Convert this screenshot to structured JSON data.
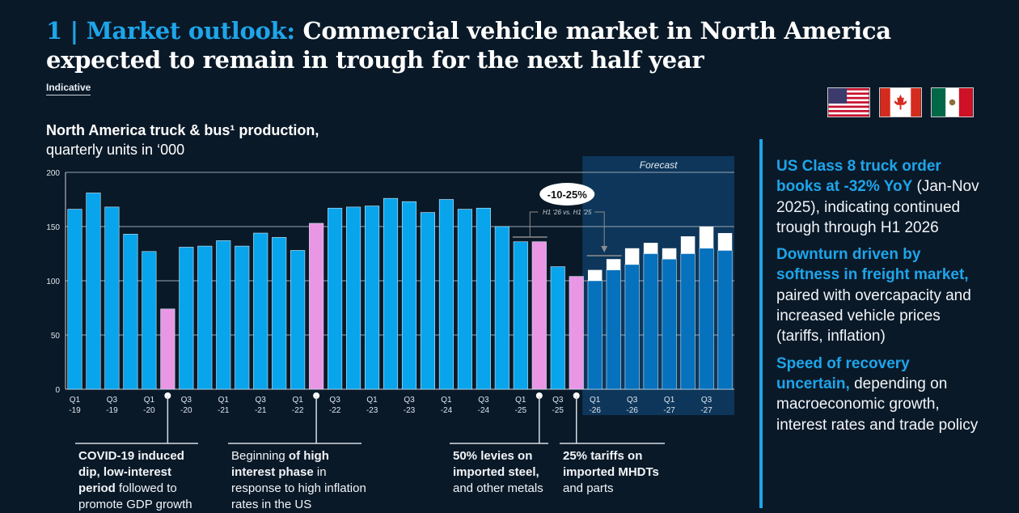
{
  "header": {
    "title_accent": "1 | Market outlook:",
    "title_rest": " Commercial vehicle market in North America expected to remain in trough for the next half year",
    "indicative": "Indicative"
  },
  "flags": [
    "us-flag-icon",
    "canada-flag-icon",
    "mexico-flag-icon"
  ],
  "colors": {
    "background": "#0a1928",
    "accent": "#1ea5ea",
    "bar_actual": "#08a4ec",
    "bar_highlight": "#e996e5",
    "bar_forecast": "#0671bd",
    "forecast_bg": "#0d365a",
    "upside": "#ffffff"
  },
  "chart_data": {
    "type": "bar",
    "title": "North America truck & bus¹ production,",
    "subtitle": "quarterly units in ‘000",
    "ylim": [
      0,
      200
    ],
    "yticks": [
      0,
      50,
      100,
      150,
      200
    ],
    "grid": true,
    "categories": [
      "Q1-19",
      "Q2-19",
      "Q3-19",
      "Q4-19",
      "Q1-20",
      "Q2-20",
      "Q3-20",
      "Q4-20",
      "Q1-21",
      "Q2-21",
      "Q3-21",
      "Q4-21",
      "Q1-22",
      "Q2-22",
      "Q3-22",
      "Q4-22",
      "Q1-23",
      "Q2-23",
      "Q3-23",
      "Q4-23",
      "Q1-24",
      "Q2-24",
      "Q3-24",
      "Q4-24",
      "Q1-25",
      "Q2-25",
      "Q3-25",
      "Q4-25",
      "Q1-26",
      "Q2-26",
      "Q3-26",
      "Q4-26",
      "Q1-27",
      "Q2-27",
      "Q3-27",
      "Q4-27"
    ],
    "tick_labels": [
      [
        "Q1",
        "-19"
      ],
      [
        "Q3",
        "-19"
      ],
      [
        "Q1",
        "-20"
      ],
      [
        "Q3",
        "-20"
      ],
      [
        "Q1",
        "-21"
      ],
      [
        "Q3",
        "-21"
      ],
      [
        "Q1",
        "-22"
      ],
      [
        "Q3",
        "-22"
      ],
      [
        "Q1",
        "-23"
      ],
      [
        "Q3",
        "-23"
      ],
      [
        "Q1",
        "-24"
      ],
      [
        "Q3",
        "-24"
      ],
      [
        "Q1",
        "-25"
      ],
      [
        "Q3",
        "-25"
      ],
      [
        "Q1",
        "-26"
      ],
      [
        "Q3",
        "-26"
      ],
      [
        "Q1",
        "-27"
      ],
      [
        "Q3",
        "-27"
      ]
    ],
    "series": [
      {
        "name": "Production",
        "values": [
          166,
          181,
          168,
          143,
          127,
          74,
          131,
          132,
          137,
          132,
          144,
          140,
          128,
          153,
          167,
          168,
          169,
          176,
          173,
          163,
          175,
          166,
          167,
          150,
          136,
          136,
          113,
          104,
          100,
          110,
          115,
          125,
          120,
          125,
          130,
          128
        ]
      },
      {
        "name": "Forecast range upside",
        "values": [
          0,
          0,
          0,
          0,
          0,
          0,
          0,
          0,
          0,
          0,
          0,
          0,
          0,
          0,
          0,
          0,
          0,
          0,
          0,
          0,
          0,
          0,
          0,
          0,
          0,
          0,
          0,
          0,
          10,
          10,
          15,
          10,
          10,
          16,
          20,
          16
        ]
      }
    ],
    "highlighted": [
      "Q2-20",
      "Q2-22",
      "Q2-25",
      "Q4-25"
    ],
    "forecast_start": "Q1-26",
    "forecast_label": "Forecast",
    "callout": {
      "value": "-10-25%",
      "label": "H1 '26 vs. H1 '25"
    }
  },
  "annotations": [
    {
      "anchor": "Q2-20",
      "segments": [
        {
          "t": "COVID-19 induced dip, low-interest period",
          "b": true
        },
        {
          "t": " followed to promote GDP growth",
          "b": false
        }
      ]
    },
    {
      "anchor": "Q2-22",
      "segments": [
        {
          "t": "Beginning ",
          "b": false
        },
        {
          "t": "of high interest phase",
          "b": true
        },
        {
          "t": " in response to high inflation rates in the US",
          "b": false
        }
      ]
    },
    {
      "anchor": "Q2-25",
      "segments": [
        {
          "t": "50% levies on imported steel,",
          "b": true
        },
        {
          "t": " and other metals",
          "b": false
        }
      ]
    },
    {
      "anchor": "Q4-25",
      "segments": [
        {
          "t": "25% tariffs on imported MHDTs",
          "b": true
        },
        {
          "t": " and parts",
          "b": false
        }
      ]
    }
  ],
  "side_points": [
    {
      "hl": "US Class 8 truck order books at -32% YoY",
      "rest": " (Jan-Nov 2025), indicating continued trough through H1 2026"
    },
    {
      "hl": "Downturn driven by softness in freight market,",
      "rest": " paired with overcapacity and increased vehicle prices (tariffs, inflation)"
    },
    {
      "hl": "Speed of recovery uncertain,",
      "rest": " depending on macroeconomic growth, interest rates and trade policy"
    }
  ]
}
